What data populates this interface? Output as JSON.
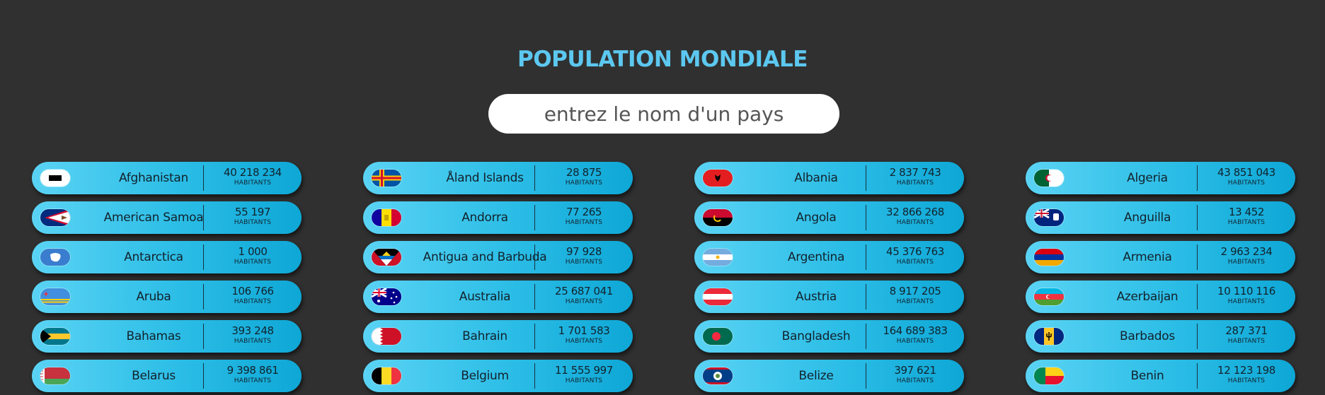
{
  "header": {
    "title": "POPULATION MONDIALE"
  },
  "search": {
    "placeholder": "entrez le nom d'un pays",
    "value": ""
  },
  "colors": {
    "title": "#5cc8f0",
    "background": "#303030",
    "card_start": "#5ad3f4",
    "card_end": "#0ea7d6"
  },
  "unit_label": "HABITANTS",
  "countries": [
    {
      "name": "Afghanistan",
      "population": "40 218 234",
      "flag_icon": "afghanistan-flag-icon"
    },
    {
      "name": "Åland Islands",
      "population": "28 875",
      "flag_icon": "aland-islands-flag-icon"
    },
    {
      "name": "Albania",
      "population": "2 837 743",
      "flag_icon": "albania-flag-icon"
    },
    {
      "name": "Algeria",
      "population": "43 851 043",
      "flag_icon": "algeria-flag-icon"
    },
    {
      "name": "American Samoa",
      "population": "55 197",
      "flag_icon": "american-samoa-flag-icon"
    },
    {
      "name": "Andorra",
      "population": "77 265",
      "flag_icon": "andorra-flag-icon"
    },
    {
      "name": "Angola",
      "population": "32 866 268",
      "flag_icon": "angola-flag-icon"
    },
    {
      "name": "Anguilla",
      "population": "13 452",
      "flag_icon": "anguilla-flag-icon"
    },
    {
      "name": "Antarctica",
      "population": "1 000",
      "flag_icon": "antarctica-flag-icon"
    },
    {
      "name": "Antigua and Barbuda",
      "population": "97 928",
      "flag_icon": "antigua-and-barbuda-flag-icon"
    },
    {
      "name": "Argentina",
      "population": "45 376 763",
      "flag_icon": "argentina-flag-icon"
    },
    {
      "name": "Armenia",
      "population": "2 963 234",
      "flag_icon": "armenia-flag-icon"
    },
    {
      "name": "Aruba",
      "population": "106 766",
      "flag_icon": "aruba-flag-icon"
    },
    {
      "name": "Australia",
      "population": "25 687 041",
      "flag_icon": "australia-flag-icon"
    },
    {
      "name": "Austria",
      "population": "8 917 205",
      "flag_icon": "austria-flag-icon"
    },
    {
      "name": "Azerbaijan",
      "population": "10 110 116",
      "flag_icon": "azerbaijan-flag-icon"
    },
    {
      "name": "Bahamas",
      "population": "393 248",
      "flag_icon": "bahamas-flag-icon"
    },
    {
      "name": "Bahrain",
      "population": "1 701 583",
      "flag_icon": "bahrain-flag-icon"
    },
    {
      "name": "Bangladesh",
      "population": "164 689 383",
      "flag_icon": "bangladesh-flag-icon"
    },
    {
      "name": "Barbados",
      "population": "287 371",
      "flag_icon": "barbados-flag-icon"
    },
    {
      "name": "Belarus",
      "population": "9 398 861",
      "flag_icon": "belarus-flag-icon"
    },
    {
      "name": "Belgium",
      "population": "11 555 997",
      "flag_icon": "belgium-flag-icon"
    },
    {
      "name": "Belize",
      "population": "397 621",
      "flag_icon": "belize-flag-icon"
    },
    {
      "name": "Benin",
      "population": "12 123 198",
      "flag_icon": "benin-flag-icon"
    }
  ]
}
